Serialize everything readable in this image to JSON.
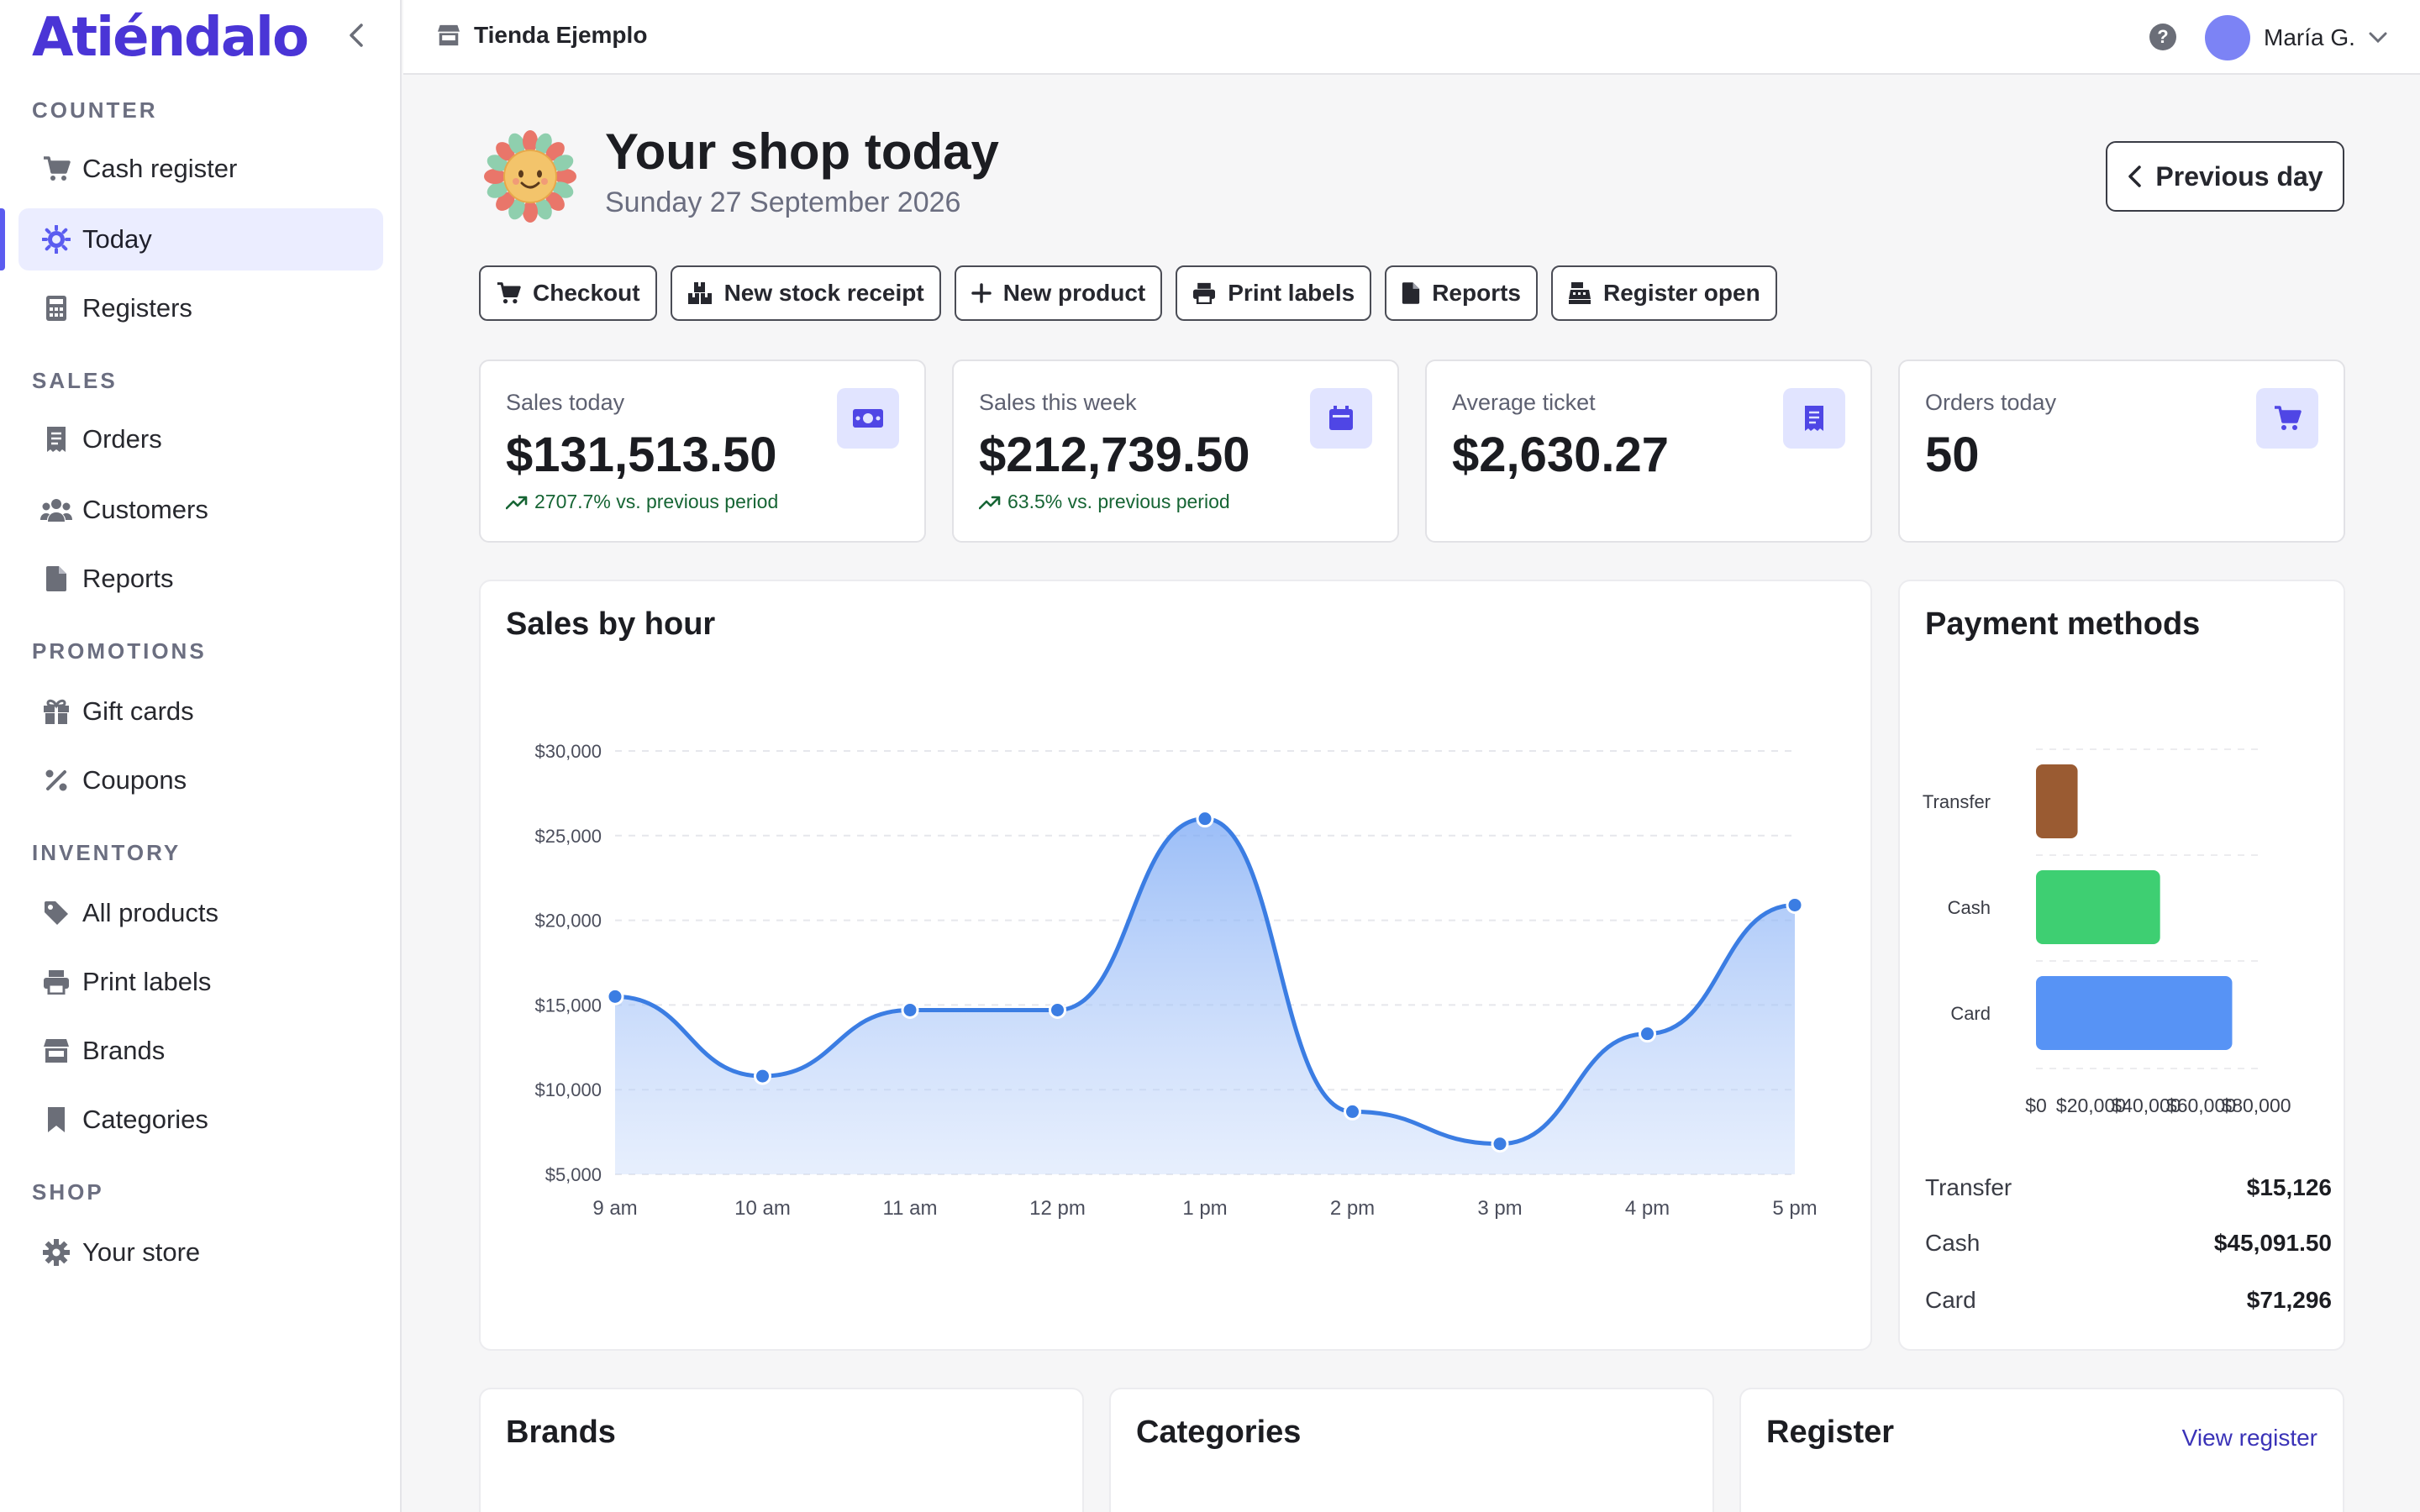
{
  "sidebar": {
    "logo": "Atiéndalo",
    "sections": [
      {
        "label": "COUNTER",
        "items": [
          {
            "label": "Cash register",
            "icon": "cart-icon"
          },
          {
            "label": "Today",
            "icon": "sun-gear-icon",
            "active": true
          },
          {
            "label": "Registers",
            "icon": "calculator-icon"
          }
        ]
      },
      {
        "label": "SALES",
        "items": [
          {
            "label": "Orders",
            "icon": "receipt-icon"
          },
          {
            "label": "Customers",
            "icon": "users-icon"
          },
          {
            "label": "Reports",
            "icon": "file-icon"
          }
        ]
      },
      {
        "label": "PROMOTIONS",
        "items": [
          {
            "label": "Gift cards",
            "icon": "gift-icon"
          },
          {
            "label": "Coupons",
            "icon": "percent-icon"
          }
        ]
      },
      {
        "label": "INVENTORY",
        "items": [
          {
            "label": "All products",
            "icon": "tag-icon"
          },
          {
            "label": "Print labels",
            "icon": "printer-icon"
          },
          {
            "label": "Brands",
            "icon": "store-icon"
          },
          {
            "label": "Categories",
            "icon": "bookmark-icon"
          }
        ]
      },
      {
        "label": "SHOP",
        "items": [
          {
            "label": "Your store",
            "icon": "gear-icon"
          }
        ]
      }
    ]
  },
  "header": {
    "store_name": "Tienda Ejemplo",
    "help": "?",
    "user_name": "María G."
  },
  "page": {
    "title": "Your shop today",
    "date": "Sunday 27 September 2026",
    "prev_day": "Previous day"
  },
  "actions": [
    {
      "label": "Checkout",
      "icon": "cart-icon"
    },
    {
      "label": "New stock receipt",
      "icon": "boxes-icon"
    },
    {
      "label": "New product",
      "icon": "plus-icon"
    },
    {
      "label": "Print labels",
      "icon": "printer-icon"
    },
    {
      "label": "Reports",
      "icon": "file-icon"
    },
    {
      "label": "Register open",
      "icon": "cash-register-icon"
    }
  ],
  "kpis": [
    {
      "label": "Sales today",
      "value": "$131,513.50",
      "trend": "2707.7% vs. previous period",
      "icon": "money-icon"
    },
    {
      "label": "Sales this week",
      "value": "$212,739.50",
      "trend": "63.5% vs. previous period",
      "icon": "calendar-icon"
    },
    {
      "label": "Average ticket",
      "value": "$2,630.27",
      "trend": "",
      "icon": "receipt-icon"
    },
    {
      "label": "Orders today",
      "value": "50",
      "trend": "",
      "icon": "cart-icon"
    }
  ],
  "sales_card": {
    "title": "Sales by hour"
  },
  "payment_card": {
    "title": "Payment methods",
    "rows": [
      {
        "name": "Transfer",
        "value": "$15,126"
      },
      {
        "name": "Cash",
        "value": "$45,091.50"
      },
      {
        "name": "Card",
        "value": "$71,296"
      }
    ]
  },
  "bottom": {
    "brands_title": "Brands",
    "categories_title": "Categories",
    "register_title": "Register",
    "view_register": "View register"
  },
  "colors": {
    "accent": "#4a35d6",
    "line": "#3b7de3",
    "transfer": "#9a5b32",
    "cash": "#3ecf72",
    "card": "#5793f5"
  },
  "chart_data": [
    {
      "type": "area",
      "title": "Sales by hour",
      "categories": [
        "9 am",
        "10 am",
        "11 am",
        "12 pm",
        "1 pm",
        "2 pm",
        "3 pm",
        "4 pm",
        "5 pm"
      ],
      "values": [
        15500,
        10800,
        14700,
        14700,
        26000,
        8700,
        6800,
        13300,
        20900
      ],
      "y_ticks": [
        "$5,000",
        "$10,000",
        "$15,000",
        "$20,000",
        "$25,000",
        "$30,000"
      ],
      "ylim": [
        5000,
        30000
      ],
      "grid": true
    },
    {
      "type": "bar",
      "orientation": "horizontal",
      "title": "Payment methods",
      "categories": [
        "Transfer",
        "Cash",
        "Card"
      ],
      "values": [
        15126,
        45091.5,
        71296
      ],
      "x_ticks": [
        "$0",
        "$20,000",
        "$40,000",
        "$60,000",
        "$80,000"
      ],
      "xlim": [
        0,
        80000
      ],
      "grid": true
    }
  ]
}
